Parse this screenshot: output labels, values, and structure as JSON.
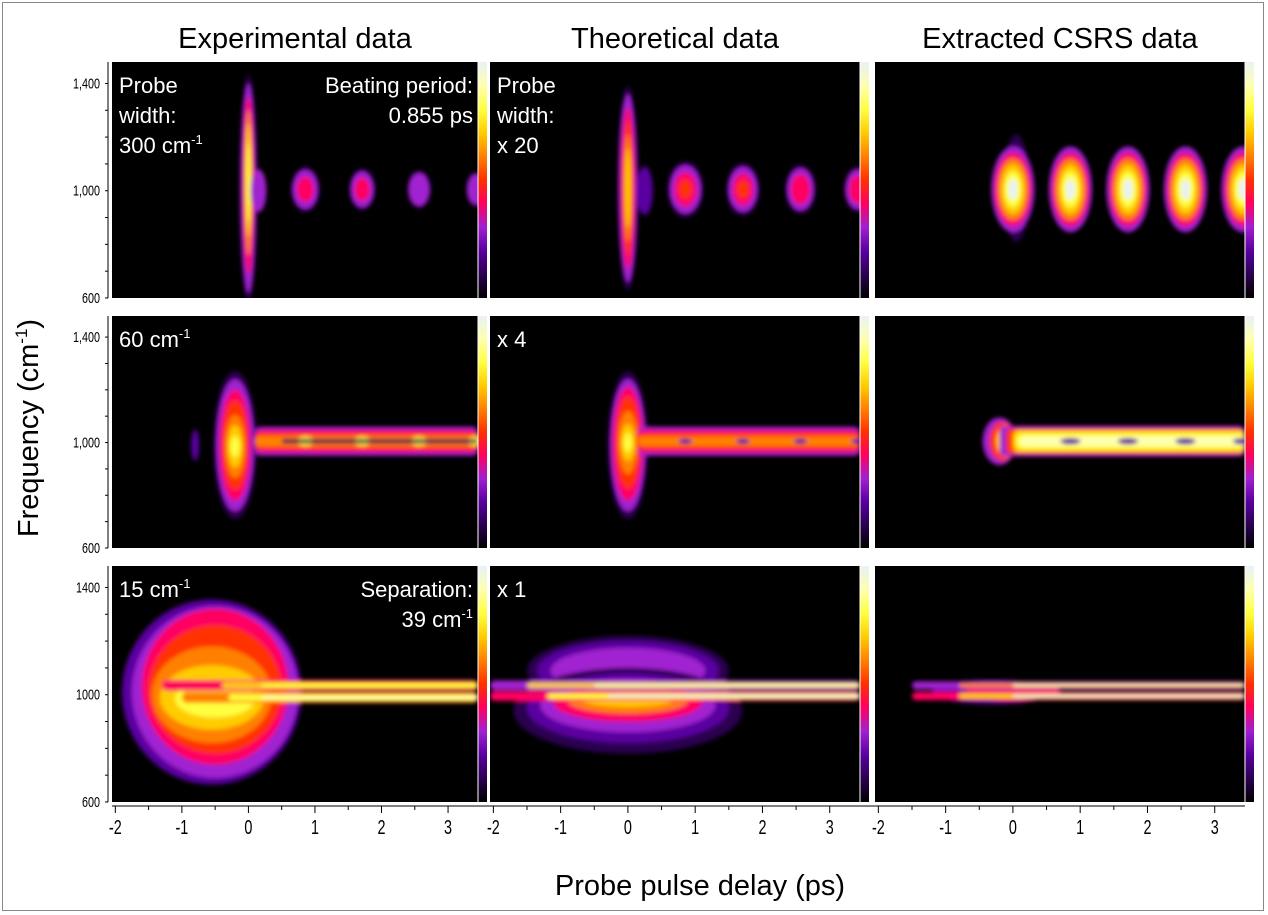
{
  "chart_data": {
    "type": "heatmap",
    "xlabel": "Probe pulse delay (ps)",
    "ylabel": "Frequency (cm",
    "ylabel_sup": "-1",
    "ylabel_close": ")",
    "columns": [
      "Experimental data",
      "Theoretical data",
      "Extracted CSRS data"
    ],
    "xlim": [
      -2.05,
      3.45
    ],
    "ylim": [
      600,
      1480
    ],
    "x_ticks": [
      -2,
      -1,
      0,
      1,
      2,
      3
    ],
    "x_tick_labels": [
      "-2",
      "-1",
      "0",
      "1",
      "2",
      "3"
    ],
    "rows": [
      {
        "y_ticks": [
          600,
          1000,
          1400
        ],
        "y_tick_labels": [
          "600",
          "1,000",
          "1,400"
        ],
        "annotations": [
          {
            "col": 0,
            "pos": "top-left",
            "lines": [
              "Probe",
              "width:",
              "300 cm"
            ],
            "sup_on_last": "-1"
          },
          {
            "col": 0,
            "pos": "top-right",
            "lines": [
              "Beating period:",
              "0.855 ps"
            ]
          },
          {
            "col": 1,
            "pos": "top-left",
            "lines": [
              "Probe",
              "width:",
              "x 20"
            ]
          }
        ]
      },
      {
        "y_ticks": [
          600,
          1000,
          1400
        ],
        "y_tick_labels": [
          "600",
          "1,000",
          "1,400"
        ],
        "annotations": [
          {
            "col": 0,
            "pos": "top-left",
            "lines": [
              "60 cm"
            ],
            "sup_on_last": "-1"
          },
          {
            "col": 1,
            "pos": "top-left",
            "lines": [
              "x 4"
            ]
          }
        ]
      },
      {
        "y_ticks": [
          600,
          1000,
          1400
        ],
        "y_tick_labels": [
          "600",
          "1000",
          "1400"
        ],
        "annotations": [
          {
            "col": 0,
            "pos": "top-left",
            "lines": [
              "15 cm"
            ],
            "sup_on_last": "-1"
          },
          {
            "col": 0,
            "pos": "top-right",
            "lines": [
              "Separation:",
              "39 cm"
            ],
            "sup_on_last": "-1"
          },
          {
            "col": 1,
            "pos": "top-left",
            "lines": [
              "x 1"
            ]
          }
        ]
      }
    ],
    "colormap": [
      "#000000",
      "#2a0050",
      "#5a00a0",
      "#a020d0",
      "#ff0060",
      "#ff3000",
      "#ff8000",
      "#ffcc00",
      "#ffff40",
      "#ffffb0",
      "#e8f2f5"
    ],
    "background": "#000000",
    "grid": false,
    "legend": "none"
  }
}
